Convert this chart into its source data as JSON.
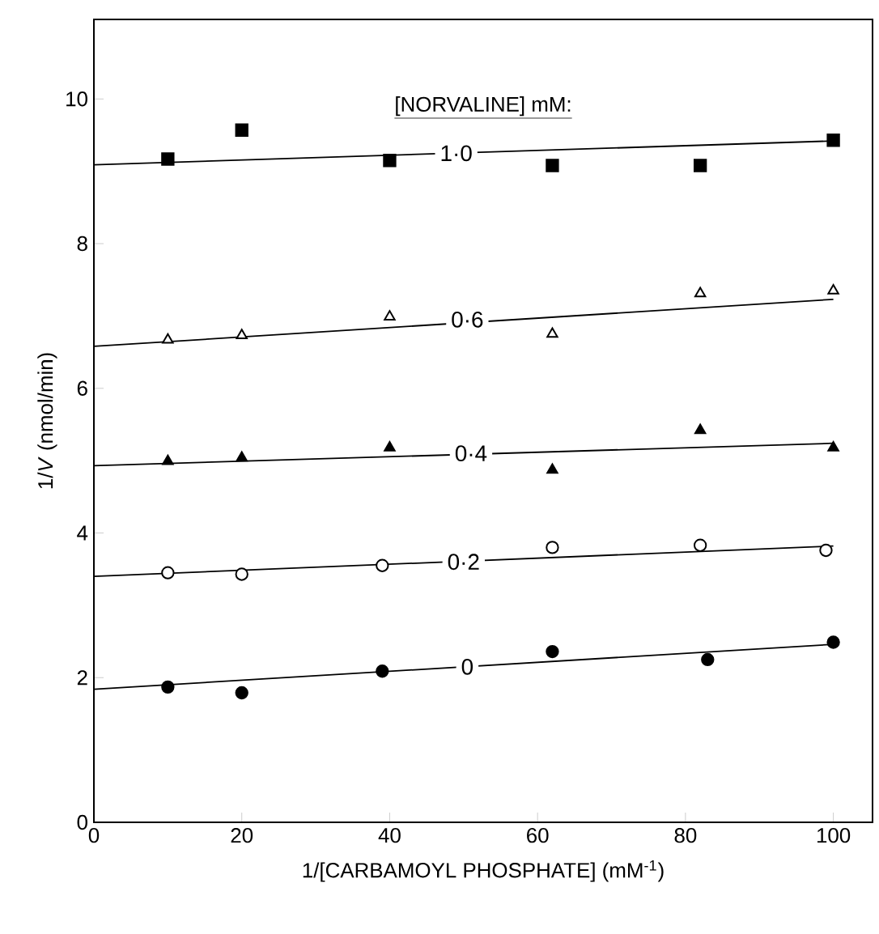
{
  "chart_data": {
    "type": "scatter",
    "xlabel": "1/[CARBAMOYL PHOSPHATE] (mM$^{-1}$)",
    "ylabel": "1/*V* (nmol/min)",
    "xlim": [
      0,
      105.3
    ],
    "ylim": [
      0,
      11.1
    ],
    "xticks": [
      0,
      20,
      40,
      60,
      80,
      100
    ],
    "yticks": [
      0,
      2,
      4,
      6,
      8,
      10
    ],
    "series": [
      {
        "marker": "circle",
        "color": "#000000",
        "x": [
          10,
          20,
          39,
          62,
          83,
          100
        ],
        "values": [
          1.87,
          1.79,
          2.09,
          2.36,
          2.25,
          2.49
        ]
      },
      {
        "marker": "circle",
        "color": "#ffffff",
        "x": [
          10,
          20,
          39,
          62,
          82,
          99
        ],
        "values": [
          3.45,
          3.43,
          3.55,
          3.8,
          3.83,
          3.76
        ]
      },
      {
        "marker": "triangle",
        "color": "#000000",
        "x": [
          10,
          20,
          40,
          62,
          82,
          100
        ],
        "values": [
          4.99,
          5.04,
          5.18,
          4.87,
          5.42,
          5.18
        ]
      },
      {
        "marker": "triangle",
        "color": "#ffffff",
        "x": [
          10,
          20,
          40,
          62,
          82,
          100
        ],
        "values": [
          6.67,
          6.73,
          6.99,
          6.75,
          7.31,
          7.35
        ]
      },
      {
        "marker": "square",
        "color": "#000000",
        "x": [
          10,
          20,
          40,
          62,
          82,
          100
        ],
        "values": [
          9.17,
          9.57,
          9.15,
          9.08,
          9.08,
          9.43
        ]
      },
      {
        "type": "line",
        "line_style": "solid",
        "color": "#000000",
        "x": [
          0,
          100
        ],
        "values": [
          1.84,
          2.46
        ]
      },
      {
        "type": "line",
        "line_style": "solid",
        "color": "#000000",
        "x": [
          0,
          100
        ],
        "values": [
          3.4,
          3.82
        ]
      },
      {
        "type": "line",
        "line_style": "solid",
        "color": "#000000",
        "x": [
          0,
          100
        ],
        "values": [
          4.93,
          5.24
        ]
      },
      {
        "type": "line",
        "line_style": "solid",
        "color": "#000000",
        "x": [
          0,
          100
        ],
        "values": [
          6.58,
          7.23
        ]
      },
      {
        "type": "line",
        "line_style": "solid",
        "color": "#000000",
        "x": [
          0,
          100
        ],
        "values": [
          9.09,
          9.42
        ]
      }
    ],
    "annotations": [
      "[NORVALINE] mM:",
      {
        "text": "1·0",
        "x": 49,
        "y": 9.25
      },
      {
        "text": "0·6",
        "x": 50.5,
        "y": 6.95
      },
      {
        "text": "0·4",
        "x": 51,
        "y": 5.1
      },
      {
        "text": "0·2",
        "x": 50,
        "y": 3.6
      },
      {
        "text": "0",
        "x": 50.5,
        "y": 2.15
      }
    ]
  }
}
